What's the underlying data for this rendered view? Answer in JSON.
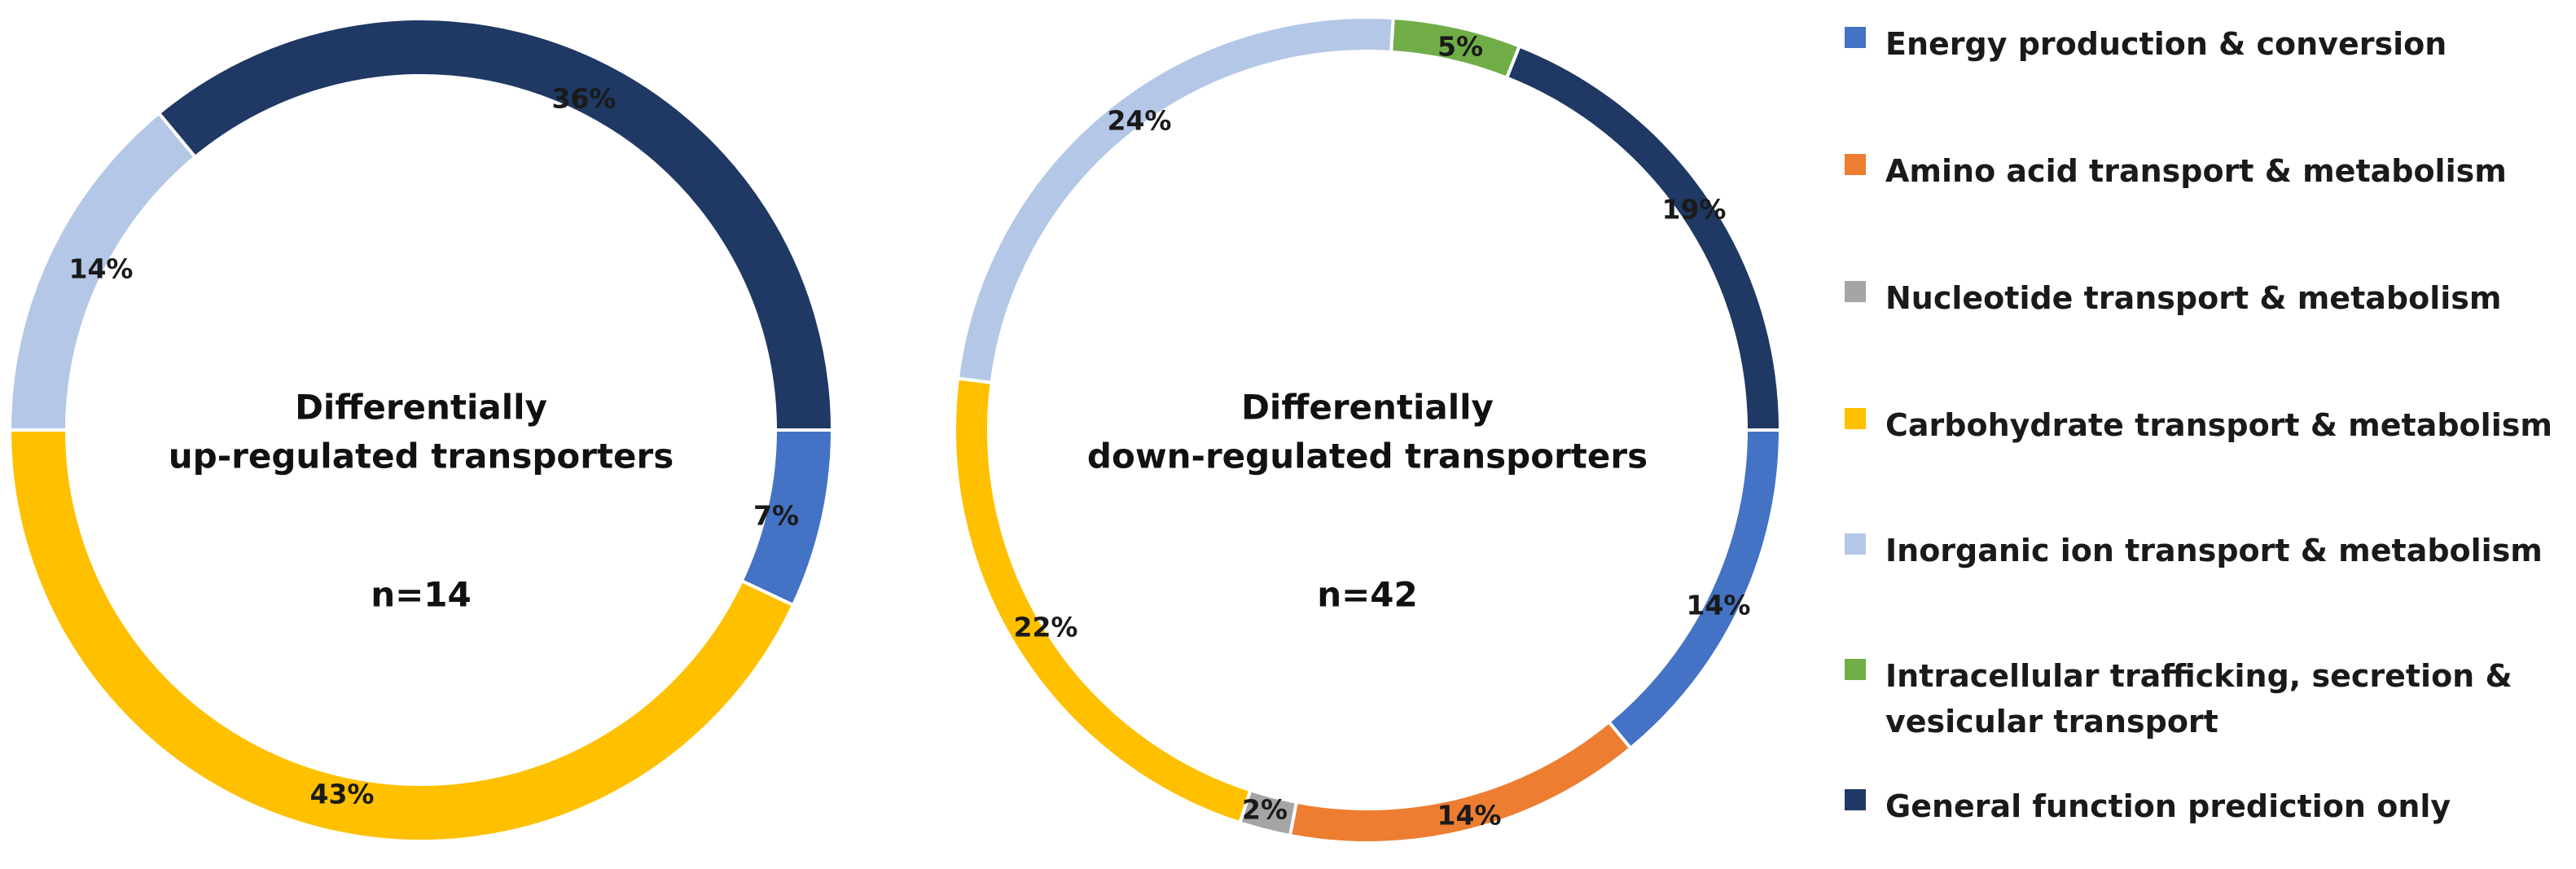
{
  "chart_data": [
    {
      "type": "pie",
      "variant": "donut",
      "center_label": [
        "Differentially",
        "up-regulated transporters"
      ],
      "n_label": "n=14",
      "slices": [
        {
          "category": "Energy production & conversion",
          "value": 7,
          "label": "7%"
        },
        {
          "category": "Carbohydrate transport & metabolism",
          "value": 43,
          "label": "43%"
        },
        {
          "category": "Inorganic ion transport & metabolism",
          "value": 14,
          "label": "14%"
        },
        {
          "category": "General function prediction only",
          "value": 36,
          "label": "36%"
        }
      ]
    },
    {
      "type": "pie",
      "variant": "donut",
      "center_label": [
        "Differentially",
        "down-regulated transporters"
      ],
      "n_label": "n=42",
      "slices": [
        {
          "category": "Energy production & conversion",
          "value": 14,
          "label": "14%"
        },
        {
          "category": "Amino acid transport & metabolism",
          "value": 14,
          "label": "14%"
        },
        {
          "category": "Nucleotide transport & metabolism",
          "value": 2,
          "label": "2%"
        },
        {
          "category": "Carbohydrate transport & metabolism",
          "value": 22,
          "label": "22%"
        },
        {
          "category": "Inorganic ion transport & metabolism",
          "value": 24,
          "label": "24%"
        },
        {
          "category": "Intracellular trafficking, secretion & vesicular transport",
          "value": 5,
          "label": "5%"
        },
        {
          "category": "General function prediction only",
          "value": 19,
          "label": "19%"
        }
      ]
    }
  ],
  "legend": {
    "placement": "right",
    "items": [
      {
        "label": "Energy production & conversion",
        "color": "#4472C4"
      },
      {
        "label": "Amino acid transport & metabolism",
        "color": "#ED7D31"
      },
      {
        "label": "Nucleotide transport & metabolism",
        "color": "#A5A5A5"
      },
      {
        "label": "Carbohydrate transport & metabolism",
        "color": "#FFC000"
      },
      {
        "label": "Inorganic ion transport & metabolism",
        "color": "#B4C7E7"
      },
      {
        "label": "Intracellular trafficking, secretion &\nvesicular transport",
        "color": "#70AD47"
      },
      {
        "label": "General function prediction only",
        "color": "#1F3864"
      }
    ]
  }
}
